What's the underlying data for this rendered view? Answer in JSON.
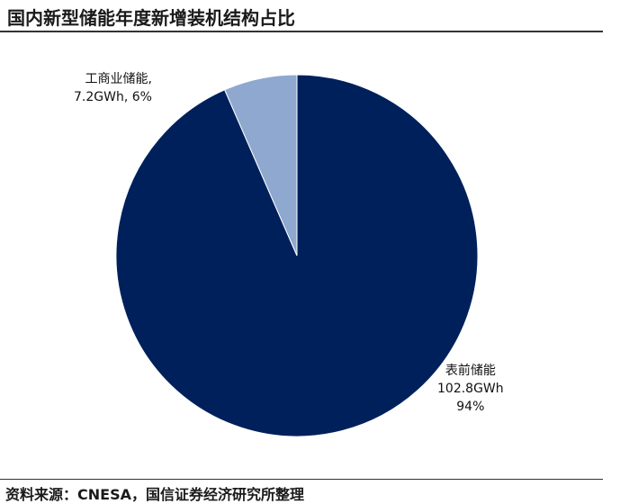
{
  "title": "国内新型储能年度新增装机结构占比",
  "source": "资料来源：CNESA，国信证券经济研究所整理",
  "chart_data": {
    "type": "pie",
    "slices": [
      {
        "name": "表前储能",
        "value": 102.8,
        "unit": "GWh",
        "percent": 94,
        "value_label": "102.8GWh",
        "percent_label": "94%",
        "color": "#00205b"
      },
      {
        "name": "工商业储能,",
        "value": 7.2,
        "unit": "GWh",
        "percent": 6,
        "value_label": "7.2GWh, 6%",
        "color": "#8fa8cf"
      }
    ],
    "start_angle": "12 o'clock",
    "direction": "clockwise",
    "legend": "none"
  }
}
